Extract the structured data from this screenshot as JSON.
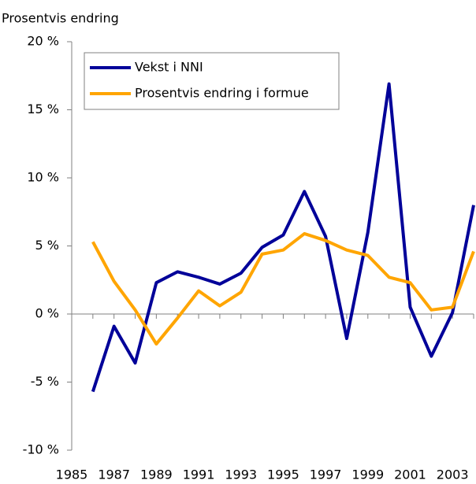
{
  "chart_data": {
    "type": "line",
    "y_label": "Prosentvis endring",
    "x": [
      1986,
      1987,
      1988,
      1989,
      1990,
      1991,
      1992,
      1993,
      1994,
      1995,
      1996,
      1997,
      1998,
      1999,
      2000,
      2001,
      2002,
      2003,
      2004
    ],
    "series": [
      {
        "name": "Vekst i NNI",
        "color": "#000099",
        "values": [
          -5.7,
          -0.9,
          -3.6,
          2.3,
          3.1,
          2.7,
          2.2,
          3.0,
          4.9,
          5.8,
          9.0,
          5.7,
          -1.8,
          6.0,
          16.9,
          0.5,
          -3.1,
          0.1,
          8.0
        ]
      },
      {
        "name": "Prosentvis endring i formue",
        "color": "#ffa500",
        "values": [
          5.3,
          2.4,
          0.3,
          -2.2,
          -0.3,
          1.7,
          0.6,
          1.6,
          4.4,
          4.7,
          5.9,
          5.4,
          4.7,
          4.3,
          2.7,
          2.3,
          0.3,
          0.5,
          4.6
        ]
      }
    ],
    "xlim": [
      1985,
      2004
    ],
    "xticks": [
      1985,
      1987,
      1989,
      1991,
      1993,
      1995,
      1997,
      1999,
      2001,
      2003
    ],
    "ylim": [
      -10,
      20
    ],
    "yticks": [
      {
        "value": -10,
        "label": "-10 %"
      },
      {
        "value": -5,
        "label": "-5 %"
      },
      {
        "value": 0,
        "label": "0 %"
      },
      {
        "value": 5,
        "label": "5 %"
      },
      {
        "value": 10,
        "label": "10 %"
      },
      {
        "value": 15,
        "label": "15 %"
      },
      {
        "value": 20,
        "label": "20 %"
      }
    ],
    "legend": "upper left"
  }
}
